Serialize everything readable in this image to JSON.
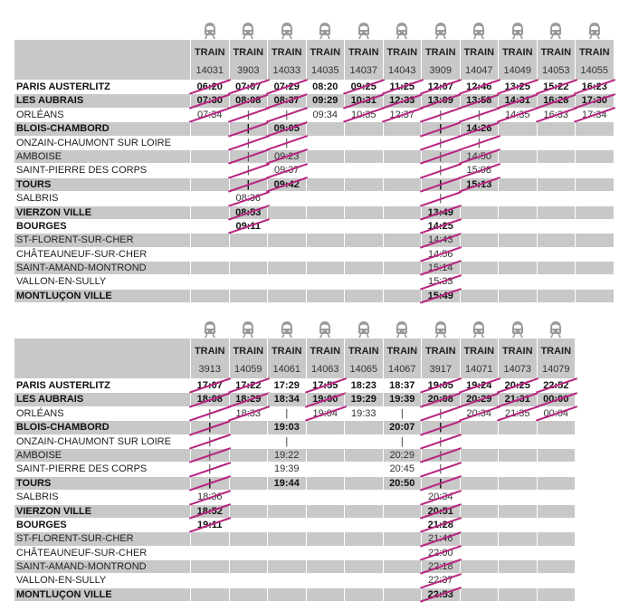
{
  "header_label": "TRAIN",
  "colors": {
    "strike": "#b8237f",
    "stripe": "#c8c8c8",
    "icon": "#9a9a9a"
  },
  "icon": "train-front-icon",
  "stations": [
    {
      "name": "PARIS AUSTERLITZ",
      "bold": true
    },
    {
      "name": "LES AUBRAIS",
      "bold": true
    },
    {
      "name": "ORLÉANS",
      "bold": false
    },
    {
      "name": "BLOIS-CHAMBORD",
      "bold": true
    },
    {
      "name": "ONZAIN-CHAUMONT SUR LOIRE",
      "bold": false
    },
    {
      "name": "AMBOISE",
      "bold": false
    },
    {
      "name": "SAINT-PIERRE DES CORPS",
      "bold": false
    },
    {
      "name": "TOURS",
      "bold": true
    },
    {
      "name": "SALBRIS",
      "bold": false
    },
    {
      "name": "VIERZON VILLE",
      "bold": true
    },
    {
      "name": "BOURGES",
      "bold": true
    },
    {
      "name": "ST-FLORENT-SUR-CHER",
      "bold": false
    },
    {
      "name": "CHÂTEAUNEUF-SUR-CHER",
      "bold": false
    },
    {
      "name": "SAINT-AMAND-MONTROND",
      "bold": false
    },
    {
      "name": "VALLON-EN-SULLY",
      "bold": false
    },
    {
      "name": "MONTLUÇON VILLE",
      "bold": true
    }
  ],
  "tables": [
    {
      "trains": [
        {
          "number": "14031",
          "cancelled": true,
          "times": [
            "06:20",
            "07:30",
            "07:34",
            "",
            "",
            "",
            "",
            "",
            "",
            "",
            "",
            "",
            "",
            "",
            "",
            ""
          ]
        },
        {
          "number": "3903",
          "cancelled": true,
          "times": [
            "07:07",
            "08:08",
            "|",
            "|",
            "|",
            "|",
            "|",
            "|",
            "08:36",
            "08:53",
            "09:11",
            "",
            "",
            "",
            "",
            ""
          ]
        },
        {
          "number": "14033",
          "cancelled": true,
          "times": [
            "07:29",
            "08:37",
            "|",
            "09:05",
            "|",
            "09:23",
            "09:37",
            "09:42",
            "",
            "",
            "",
            "",
            "",
            "",
            "",
            ""
          ]
        },
        {
          "number": "14035",
          "cancelled": false,
          "times": [
            "08:20",
            "09:29",
            "09:34",
            "",
            "",
            "",
            "",
            "",
            "",
            "",
            "",
            "",
            "",
            "",
            "",
            ""
          ]
        },
        {
          "number": "14037",
          "cancelled": true,
          "times": [
            "09:25",
            "10:31",
            "10:35",
            "",
            "",
            "",
            "",
            "",
            "",
            "",
            "",
            "",
            "",
            "",
            "",
            ""
          ]
        },
        {
          "number": "14043",
          "cancelled": true,
          "times": [
            "11:25",
            "12:33",
            "12:37",
            "",
            "",
            "",
            "",
            "",
            "",
            "",
            "",
            "",
            "",
            "",
            "",
            ""
          ]
        },
        {
          "number": "3909",
          "cancelled": true,
          "times": [
            "12:07",
            "13:09",
            "|",
            "|",
            "|",
            "|",
            "|",
            "|",
            "|",
            "13:49",
            "14:25",
            "14:43",
            "14:56",
            "15:14",
            "15:33",
            "15:49"
          ]
        },
        {
          "number": "14047",
          "cancelled": true,
          "times": [
            "12:46",
            "13:58",
            "|",
            "14:26",
            "|",
            "14:50",
            "15:08",
            "15:13",
            "",
            "",
            "",
            "",
            "",
            "",
            "",
            ""
          ]
        },
        {
          "number": "14049",
          "cancelled": true,
          "times": [
            "13:25",
            "14:31",
            "14:35",
            "",
            "",
            "",
            "",
            "",
            "",
            "",
            "",
            "",
            "",
            "",
            "",
            ""
          ]
        },
        {
          "number": "14053",
          "cancelled": true,
          "times": [
            "15:22",
            "16:28",
            "16:33",
            "",
            "",
            "",
            "",
            "",
            "",
            "",
            "",
            "",
            "",
            "",
            "",
            ""
          ]
        },
        {
          "number": "14055",
          "cancelled": true,
          "times": [
            "16:23",
            "17:30",
            "17:34",
            "",
            "",
            "",
            "",
            "",
            "",
            "",
            "",
            "",
            "",
            "",
            "",
            ""
          ]
        }
      ]
    },
    {
      "trains": [
        {
          "number": "3913",
          "cancelled": true,
          "times": [
            "17:07",
            "18:08",
            "|",
            "|",
            "|",
            "|",
            "|",
            "|",
            "18:36",
            "18:52",
            "19:11",
            "",
            "",
            "",
            "",
            ""
          ]
        },
        {
          "number": "14059",
          "cancelled": true,
          "times": [
            "17:22",
            "18:29",
            "18:33",
            "",
            "",
            "",
            "",
            "",
            "",
            "",
            "",
            "",
            "",
            "",
            "",
            ""
          ]
        },
        {
          "number": "14061",
          "cancelled": false,
          "times": [
            "17:29",
            "18:34",
            "|",
            "19:03",
            "|",
            "19:22",
            "19:39",
            "19:44",
            "",
            "",
            "",
            "",
            "",
            "",
            "",
            ""
          ]
        },
        {
          "number": "14063",
          "cancelled": true,
          "times": [
            "17:55",
            "19:00",
            "19:04",
            "",
            "",
            "",
            "",
            "",
            "",
            "",
            "",
            "",
            "",
            "",
            "",
            ""
          ]
        },
        {
          "number": "14065",
          "cancelled": false,
          "times": [
            "18:23",
            "19:29",
            "19:33",
            "",
            "",
            "",
            "",
            "",
            "",
            "",
            "",
            "",
            "",
            "",
            "",
            ""
          ]
        },
        {
          "number": "14067",
          "cancelled": false,
          "times": [
            "18:37",
            "19:39",
            "|",
            "20:07",
            "|",
            "20:29",
            "20:45",
            "20:50",
            "",
            "",
            "",
            "",
            "",
            "",
            "",
            ""
          ]
        },
        {
          "number": "3917",
          "cancelled": true,
          "times": [
            "19:05",
            "20:08",
            "|",
            "|",
            "|",
            "|",
            "|",
            "|",
            "20:34",
            "20:51",
            "21:28",
            "21:46",
            "22:00",
            "22:18",
            "22:37",
            "22:53"
          ]
        },
        {
          "number": "14071",
          "cancelled": true,
          "times": [
            "19:24",
            "20:29",
            "20:34",
            "",
            "",
            "",
            "",
            "",
            "",
            "",
            "",
            "",
            "",
            "",
            "",
            ""
          ]
        },
        {
          "number": "14073",
          "cancelled": true,
          "times": [
            "20:25",
            "21:31",
            "21:35",
            "",
            "",
            "",
            "",
            "",
            "",
            "",
            "",
            "",
            "",
            "",
            "",
            ""
          ]
        },
        {
          "number": "14079",
          "cancelled": true,
          "times": [
            "22:52",
            "00:00",
            "00:04",
            "",
            "",
            "",
            "",
            "",
            "",
            "",
            "",
            "",
            "",
            "",
            "",
            ""
          ]
        }
      ]
    }
  ]
}
